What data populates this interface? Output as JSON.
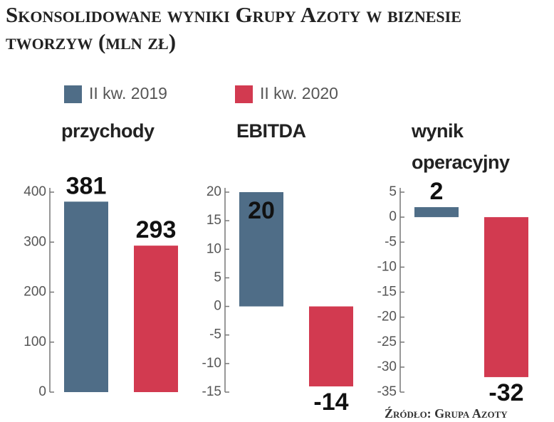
{
  "title": "Skonsolidowane wyniki Grupy Azoty w biznesie tworzyw (mln zł)",
  "source": "Źródło: Grupa Azoty",
  "legend": [
    {
      "name": "II kw. 2019",
      "color": "#4f6d87"
    },
    {
      "name": "II kw. 2020",
      "color": "#d23a50"
    }
  ],
  "chart_data": [
    {
      "type": "bar",
      "title": "przychody",
      "values": [
        381,
        293
      ],
      "ylim": [
        0,
        400
      ],
      "yticks": [
        0,
        100,
        200,
        300,
        400
      ]
    },
    {
      "type": "bar",
      "title": "EBITDA",
      "values": [
        20,
        -14
      ],
      "ylim": [
        -15,
        20
      ],
      "yticks": [
        -15,
        -10,
        -5,
        0,
        5,
        10,
        15,
        20
      ]
    },
    {
      "type": "bar",
      "title": "wynik operacyjny",
      "values": [
        2,
        -32
      ],
      "ylim": [
        -35,
        5
      ],
      "yticks": [
        -35,
        -30,
        -25,
        -20,
        -15,
        -10,
        -5,
        0,
        5
      ]
    }
  ]
}
